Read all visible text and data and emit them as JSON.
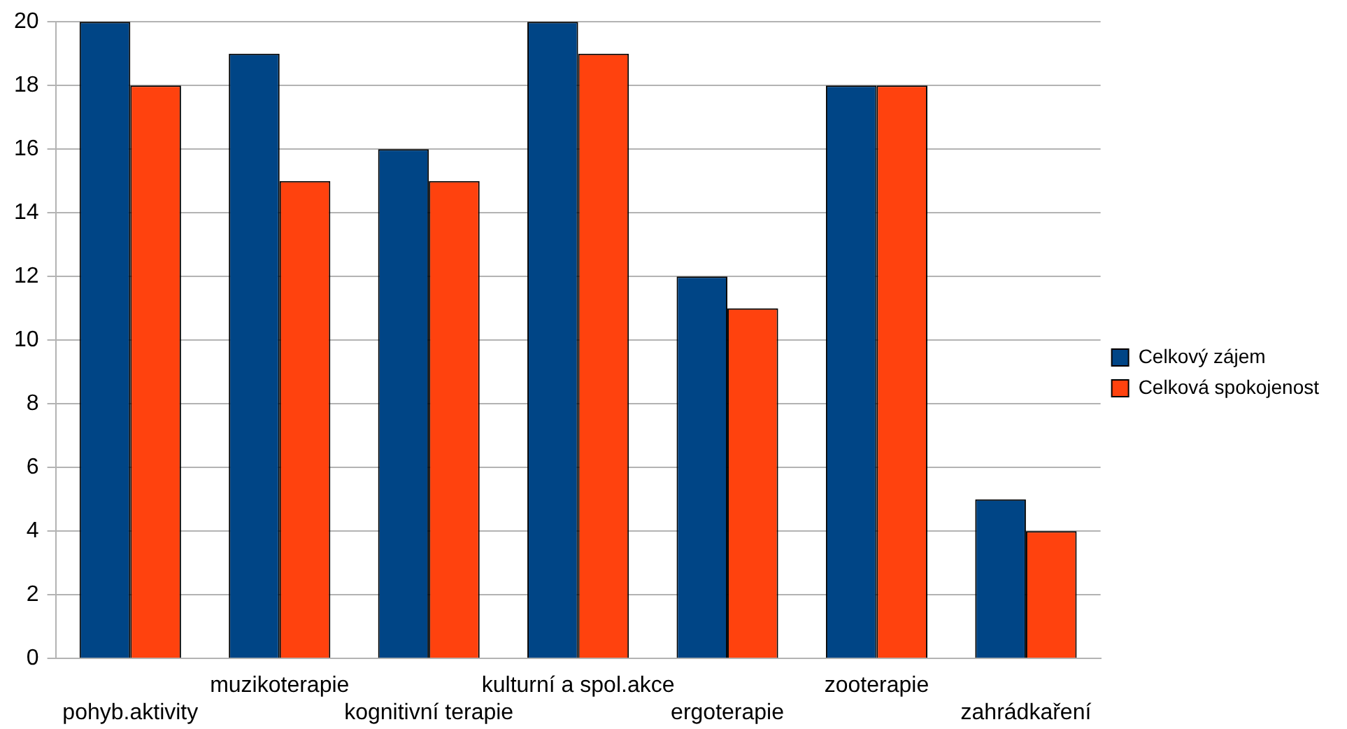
{
  "chart_data": {
    "type": "bar",
    "categories": [
      "pohyb.aktivity",
      "muzikoterapie",
      "kognitivní terapie",
      "kulturní a spol.akce",
      "ergoterapie",
      "zooterapie",
      "zahrádkaření"
    ],
    "series": [
      {
        "name": "Celkový zájem",
        "color": "#004586",
        "values": [
          20,
          19,
          16,
          20,
          12,
          18,
          5
        ]
      },
      {
        "name": "Celková spokojenost",
        "color": "#ff420e",
        "values": [
          18,
          15,
          15,
          19,
          11,
          18,
          4
        ]
      }
    ],
    "ylim": [
      0,
      20
    ],
    "yticks": [
      0,
      2,
      4,
      6,
      8,
      10,
      12,
      14,
      16,
      18,
      20
    ],
    "grid": "y",
    "legend": "right"
  }
}
